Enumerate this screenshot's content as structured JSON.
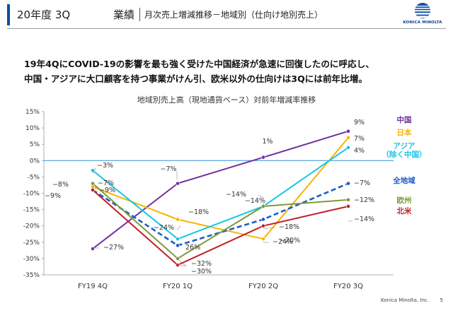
{
  "header": {
    "title": "20年度 3Q",
    "section": "業績",
    "subtitle": "月次売上増減推移－地域別（仕向け地別売上）",
    "logo_text": "KONICA MINOLTA"
  },
  "headline": {
    "line1": "19年4QにCOVID-19の影響を最も強く受けた中国経済が急速に回復したのに呼応し、",
    "line2": "中国・アジアに大口顧客を持つ事業がけん引、欧米以外の仕向けは3Qには前年比増。"
  },
  "footer": {
    "company": "Konica Minolta, Inc.",
    "page": "5"
  },
  "colors": {
    "brand": "#0a4ea2",
    "china": "#7030a0",
    "japan": "#f5b400",
    "asia": "#16c7e5",
    "all": "#1f5cc8",
    "europe": "#7f9a3c",
    "na": "#c0202a",
    "zero_line": "#2f8fd8"
  },
  "chart_data": {
    "type": "line",
    "title": "地域別売上高（現地通貨ベース）対前年増減率推移",
    "categories": [
      "FY19 4Q",
      "FY20 1Q",
      "FY20 2Q",
      "FY20 3Q"
    ],
    "ylim": [
      -35,
      15
    ],
    "yticks": [
      15,
      10,
      5,
      0,
      -5,
      -10,
      -15,
      -20,
      -25,
      -30,
      -35
    ],
    "ytick_labels": [
      "15%",
      "10%",
      "5%",
      "0%",
      "-5%",
      "-10%",
      "-15%",
      "-20%",
      "-25%",
      "-30%",
      "-35%"
    ],
    "grid": false,
    "legend": "right",
    "series": [
      {
        "name": "中国",
        "key": "china",
        "values": [
          -27,
          -7,
          1,
          9
        ],
        "labels": [
          "−27%",
          "−7%",
          "1%",
          "9%"
        ]
      },
      {
        "name": "日本",
        "key": "japan",
        "values": [
          -8,
          -18,
          -24,
          7
        ],
        "labels": [
          "−8%",
          "−18%",
          "−24%",
          "7%"
        ]
      },
      {
        "name": "アジア（除く中国）",
        "key": "asia",
        "values": [
          -3,
          -24,
          -14,
          4
        ],
        "labels": [
          "−3%",
          "−24%",
          "−14%",
          "4%"
        ]
      },
      {
        "name": "全地域",
        "key": "all",
        "values": [
          -9,
          -26,
          -18,
          -7
        ],
        "labels": [
          "−9%",
          "",
          "−18%",
          "−7%"
        ],
        "dashed": true
      },
      {
        "name": "欧州",
        "key": "europe",
        "values": [
          -7,
          -30,
          -14,
          -12
        ],
        "labels": [
          "−7%",
          "−30%",
          "−14%",
          "−12%"
        ]
      },
      {
        "name": "北米",
        "key": "na",
        "values": [
          -9,
          -32,
          -20,
          -14
        ],
        "labels": [
          "−9%",
          "−32%",
          "−20%",
          "−14%"
        ]
      }
    ],
    "extra_labels": [
      "26%"
    ],
    "legend_entries": [
      {
        "text": "中国",
        "key": "china"
      },
      {
        "text": "日本",
        "key": "japan"
      },
      {
        "text": "アジア",
        "key": "asia"
      },
      {
        "text": "（除く中国）",
        "key": "asia"
      },
      {
        "text": "全地域",
        "key": "all"
      },
      {
        "text": "欧州",
        "key": "europe"
      },
      {
        "text": "北米",
        "key": "na"
      }
    ]
  }
}
